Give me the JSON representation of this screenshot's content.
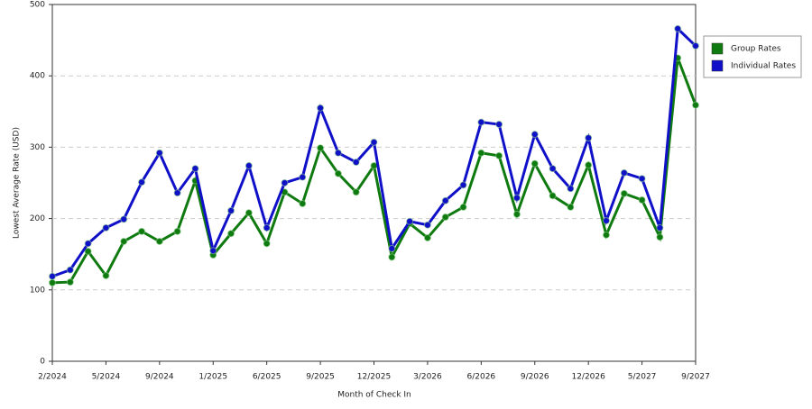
{
  "chart_data": {
    "type": "line",
    "x_label": "Month of Check In",
    "y_label": "Lowest Average Rate (USD)",
    "categories": [
      "2/2024",
      null,
      null,
      "5/2024",
      null,
      null,
      "9/2024",
      null,
      null,
      "1/2025",
      null,
      null,
      "6/2025",
      null,
      null,
      "9/2025",
      null,
      null,
      "12/2025",
      null,
      null,
      "3/2026",
      null,
      null,
      "6/2026",
      null,
      null,
      "9/2026",
      null,
      null,
      "12/2026",
      null,
      null,
      "5/2027",
      null,
      null,
      "9/2027"
    ],
    "series": [
      {
        "name": "Group Rates",
        "color": "#0f7a0f",
        "values": [
          110,
          111,
          154,
          120,
          168,
          182,
          168,
          182,
          253,
          149,
          179,
          208,
          165,
          237,
          221,
          299,
          263,
          237,
          274,
          146,
          193,
          173,
          202,
          216,
          292,
          288,
          206,
          277,
          232,
          216,
          275,
          177,
          235,
          226,
          174,
          425,
          359
        ]
      },
      {
        "name": "Individual Rates",
        "color": "#1010c8",
        "values": [
          119,
          128,
          165,
          187,
          199,
          251,
          292,
          236,
          270,
          155,
          211,
          274,
          187,
          250,
          258,
          355,
          292,
          279,
          307,
          158,
          196,
          191,
          225,
          247,
          335,
          332,
          229,
          318,
          270,
          242,
          313,
          197,
          264,
          256,
          187,
          466,
          442
        ]
      }
    ],
    "ylim": [
      0,
      500
    ],
    "yticks": [
      0,
      100,
      200,
      300,
      400,
      500
    ],
    "grid": true,
    "legend": "right"
  }
}
